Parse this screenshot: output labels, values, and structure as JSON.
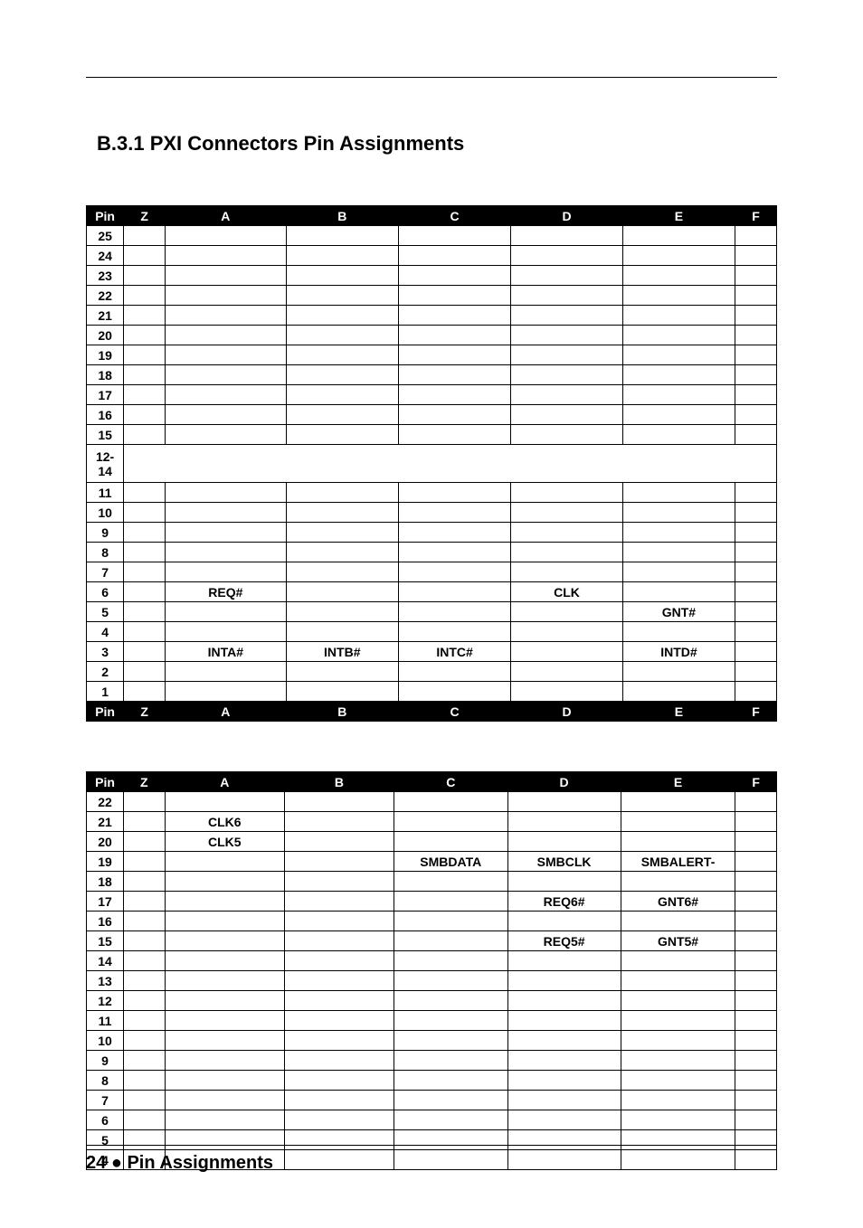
{
  "heading": "B.3.1  PXI Connectors Pin Assignments",
  "footer": {
    "page": "24",
    "bullet": "●",
    "label": "Pin Assignments"
  },
  "cols": {
    "pin": "Pin",
    "z": "Z",
    "a": "A",
    "b": "B",
    "c": "C",
    "d": "D",
    "e": "E",
    "f": "F"
  },
  "table1": {
    "rows": [
      {
        "pin": "25"
      },
      {
        "pin": "24"
      },
      {
        "pin": "23"
      },
      {
        "pin": "22"
      },
      {
        "pin": "21"
      },
      {
        "pin": "20"
      },
      {
        "pin": "19"
      },
      {
        "pin": "18"
      },
      {
        "pin": "17"
      },
      {
        "pin": "16"
      },
      {
        "pin": "15"
      },
      {
        "pin": "12-14",
        "merged": true
      },
      {
        "pin": "11"
      },
      {
        "pin": "10"
      },
      {
        "pin": "9"
      },
      {
        "pin": "8"
      },
      {
        "pin": "7"
      },
      {
        "pin": "6",
        "a": "REQ#",
        "d": "CLK"
      },
      {
        "pin": "5",
        "e": "GNT#"
      },
      {
        "pin": "4"
      },
      {
        "pin": "3",
        "a": "INTA#",
        "b": "INTB#",
        "c": "INTC#",
        "e": "INTD#"
      },
      {
        "pin": "2"
      },
      {
        "pin": "1"
      }
    ]
  },
  "table2": {
    "rows": [
      {
        "pin": "22"
      },
      {
        "pin": "21",
        "a": "CLK6"
      },
      {
        "pin": "20",
        "a": "CLK5"
      },
      {
        "pin": "19",
        "c": "SMBDATA",
        "d": "SMBCLK",
        "e": "SMBALERT-"
      },
      {
        "pin": "18"
      },
      {
        "pin": "17",
        "d": "REQ6#",
        "e": "GNT6#"
      },
      {
        "pin": "16"
      },
      {
        "pin": "15",
        "d": "REQ5#",
        "e": "GNT5#"
      },
      {
        "pin": "14"
      },
      {
        "pin": "13"
      },
      {
        "pin": "12"
      },
      {
        "pin": "11"
      },
      {
        "pin": "10"
      },
      {
        "pin": "9"
      },
      {
        "pin": "8"
      },
      {
        "pin": "7"
      },
      {
        "pin": "6"
      },
      {
        "pin": "5"
      },
      {
        "pin": "4"
      }
    ]
  }
}
